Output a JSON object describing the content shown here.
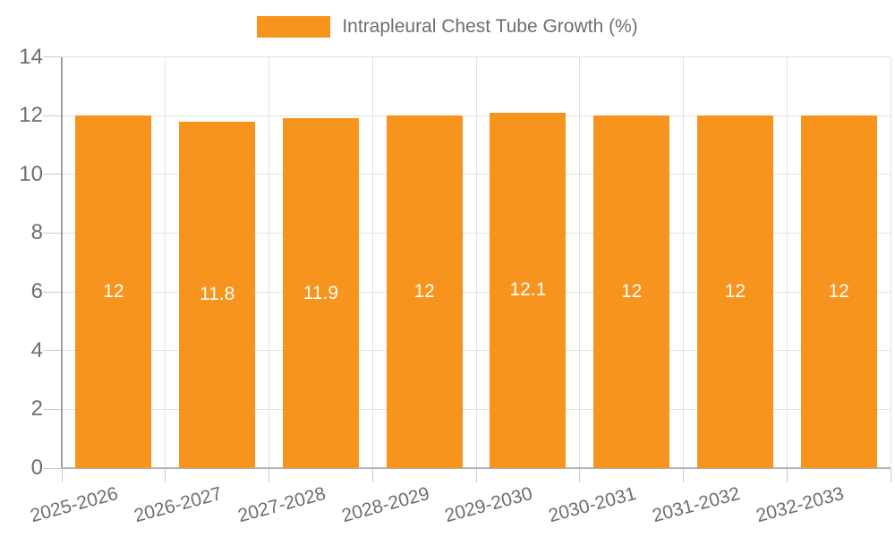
{
  "legend": {
    "label": "Intrapleural Chest Tube Growth (%)"
  },
  "chart_data": {
    "type": "bar",
    "title": "",
    "xlabel": "",
    "ylabel": "",
    "categories": [
      "2025-2026",
      "2026-2027",
      "2027-2028",
      "2028-2029",
      "2029-2030",
      "2030-2031",
      "2031-2032",
      "2032-2033"
    ],
    "values": [
      12,
      11.8,
      11.9,
      12,
      12.1,
      12,
      12,
      12
    ],
    "bar_labels": [
      "12",
      "11.8",
      "11.9",
      "12",
      "12.1",
      "12",
      "12",
      "12"
    ],
    "series": [
      {
        "name": "Intrapleural Chest Tube Growth (%)",
        "values": [
          12,
          11.8,
          11.9,
          12,
          12.1,
          12,
          12,
          12
        ]
      }
    ],
    "ylim": [
      0,
      14
    ],
    "yticks": [
      0,
      2,
      4,
      6,
      8,
      10,
      12,
      14
    ],
    "grid": true,
    "legend_position": "top-center",
    "x_tick_rotation_deg": -15,
    "colors": {
      "bar": "#F7941E",
      "bar_label_text": "#FFFFFF",
      "axis_text": "#6E6E6E",
      "gridline": "#E3E3E3",
      "tick": "#CACACA",
      "y_axis_line": "#9E9E9E",
      "x_axis_line": "#B3B3B3",
      "background": "#FFFFFF"
    }
  }
}
